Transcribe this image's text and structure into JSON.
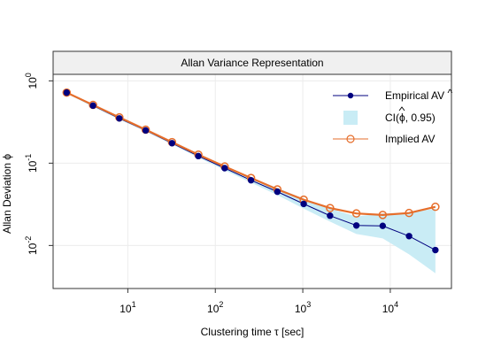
{
  "chart_data": {
    "type": "line",
    "title": "Allan Variance Representation",
    "xlabel": "Clustering time τ [sec]",
    "ylabel": "Allan Deviation ϕ",
    "x_scale": "log",
    "y_scale": "log",
    "xlim": [
      1.4,
      50000
    ],
    "ylim": [
      0.003,
      1.2
    ],
    "x_ticks": [
      {
        "value": 10,
        "base": "10",
        "exp": "1"
      },
      {
        "value": 100,
        "base": "10",
        "exp": "2"
      },
      {
        "value": 1000,
        "base": "10",
        "exp": "3"
      },
      {
        "value": 10000,
        "base": "10",
        "exp": "4"
      }
    ],
    "y_ticks": [
      {
        "value": 1,
        "base": "10",
        "exp": "0"
      },
      {
        "value": 0.1,
        "base": "10",
        "exp": "-1"
      },
      {
        "value": 0.01,
        "base": "10",
        "exp": "-2"
      }
    ],
    "grid": true,
    "legend_position": "top-right",
    "x": [
      2,
      4,
      8,
      16,
      32,
      64,
      128,
      256,
      512,
      1024,
      2048,
      4096,
      8192,
      16384,
      32768
    ],
    "series": [
      {
        "name": "Empirical AV",
        "legend_hat": "^",
        "kind": "line-points",
        "color": "#00007f",
        "values": [
          0.72,
          0.5,
          0.35,
          0.25,
          0.175,
          0.122,
          0.087,
          0.062,
          0.045,
          0.032,
          0.023,
          0.0175,
          0.0173,
          0.013,
          0.0088
        ]
      },
      {
        "name": "CI(",
        "name_hat": "ϕ",
        "name_suffix": ", 0.95)",
        "kind": "band",
        "color": "#c9ecf5",
        "lower": [
          0.7,
          0.485,
          0.34,
          0.243,
          0.169,
          0.117,
          0.082,
          0.058,
          0.041,
          0.028,
          0.0195,
          0.0138,
          0.0122,
          0.0078,
          0.0046
        ],
        "upper": [
          0.74,
          0.515,
          0.36,
          0.257,
          0.181,
          0.127,
          0.092,
          0.067,
          0.05,
          0.037,
          0.028,
          0.0225,
          0.0245,
          0.025,
          0.028
        ]
      },
      {
        "name": "Implied AV",
        "kind": "line-open-points",
        "color": "#e66e2b",
        "values": [
          0.72,
          0.51,
          0.36,
          0.255,
          0.18,
          0.127,
          0.091,
          0.066,
          0.048,
          0.036,
          0.0285,
          0.0245,
          0.0235,
          0.0248,
          0.0295
        ]
      }
    ]
  }
}
